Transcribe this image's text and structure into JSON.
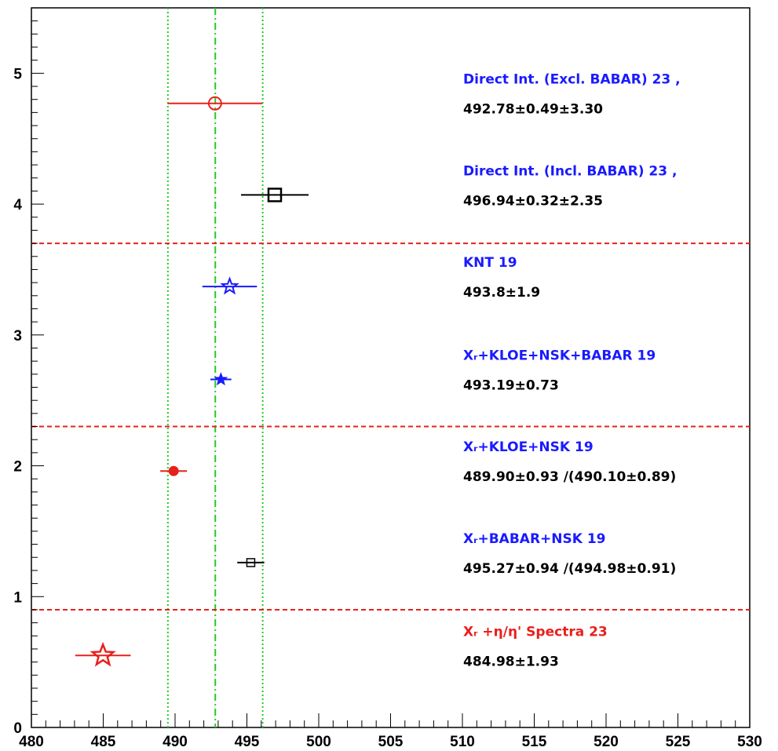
{
  "chart_data": {
    "type": "scatter",
    "title": "",
    "xlabel": "",
    "ylabel": "",
    "xlim": [
      480,
      530
    ],
    "ylim": [
      0,
      5.5
    ],
    "x_ticks": [
      480,
      485,
      490,
      495,
      500,
      505,
      510,
      515,
      520,
      525,
      530
    ],
    "y_ticks": [
      0,
      1,
      2,
      3,
      4,
      5
    ],
    "x_tick_labels": [
      "480",
      "485",
      "490",
      "495",
      "500",
      "505",
      "510",
      "515",
      "520",
      "525",
      "530"
    ],
    "y_tick_labels": [
      "0",
      "1",
      "2",
      "3",
      "4",
      "5"
    ],
    "grid": false,
    "vertical_lines": [
      {
        "x": 489.5,
        "style": "dotted",
        "color": "#22cc22"
      },
      {
        "x": 492.8,
        "style": "dashdot",
        "color": "#22cc22"
      },
      {
        "x": 496.1,
        "style": "dotted",
        "color": "#22cc22"
      }
    ],
    "separators": [
      {
        "y": 3.7,
        "color": "#e8201c"
      },
      {
        "y": 2.3,
        "color": "#e8201c"
      },
      {
        "y": 0.9,
        "color": "#e8201c"
      }
    ],
    "series": [
      {
        "label": "Direct Int. (Excl. BABAR) 23 ,",
        "value_text": "492.78±0.49±3.30",
        "x": 492.78,
        "y": 4.77,
        "xerr": 3.3,
        "marker": "open-circle",
        "color": "#e8201c",
        "label_color": "#1a1aff"
      },
      {
        "label": "Direct Int. (Incl. BABAR) 23 ,",
        "value_text": "496.94±0.32±2.35",
        "x": 496.94,
        "y": 4.07,
        "xerr": 2.35,
        "marker": "open-square",
        "color": "#000000",
        "label_color": "#1a1aff"
      },
      {
        "label": "KNT 19",
        "value_text": "493.8±1.9",
        "x": 493.8,
        "y": 3.37,
        "xerr": 1.9,
        "marker": "open-star",
        "color": "#1a1aff",
        "label_color": "#1a1aff"
      },
      {
        "label": "Xᵣ+KLOE+NSK+BABAR 19",
        "value_text": "493.19±0.73",
        "x": 493.19,
        "y": 2.66,
        "xerr": 0.73,
        "marker": "filled-star",
        "color": "#1a1aff",
        "label_color": "#1a1aff"
      },
      {
        "label": "Xᵣ+KLOE+NSK 19",
        "value_text": "489.90±0.93 /(490.10±0.89)",
        "x": 489.9,
        "y": 1.96,
        "xerr": 0.93,
        "marker": "filled-circle",
        "color": "#e8201c",
        "label_color": "#1a1aff"
      },
      {
        "label": "Xᵣ+BABAR+NSK 19",
        "value_text": "495.27±0.94 /(494.98±0.91)",
        "x": 495.27,
        "y": 1.26,
        "xerr": 0.94,
        "marker": "open-square-small",
        "color": "#000000",
        "label_color": "#1a1aff"
      },
      {
        "label": "Xᵣ +η/η' Spectra  23",
        "value_text": "484.98±1.93",
        "x": 484.98,
        "y": 0.55,
        "xerr": 1.93,
        "marker": "open-star-large",
        "color": "#e8201c",
        "label_color": "#e8201c"
      }
    ]
  }
}
